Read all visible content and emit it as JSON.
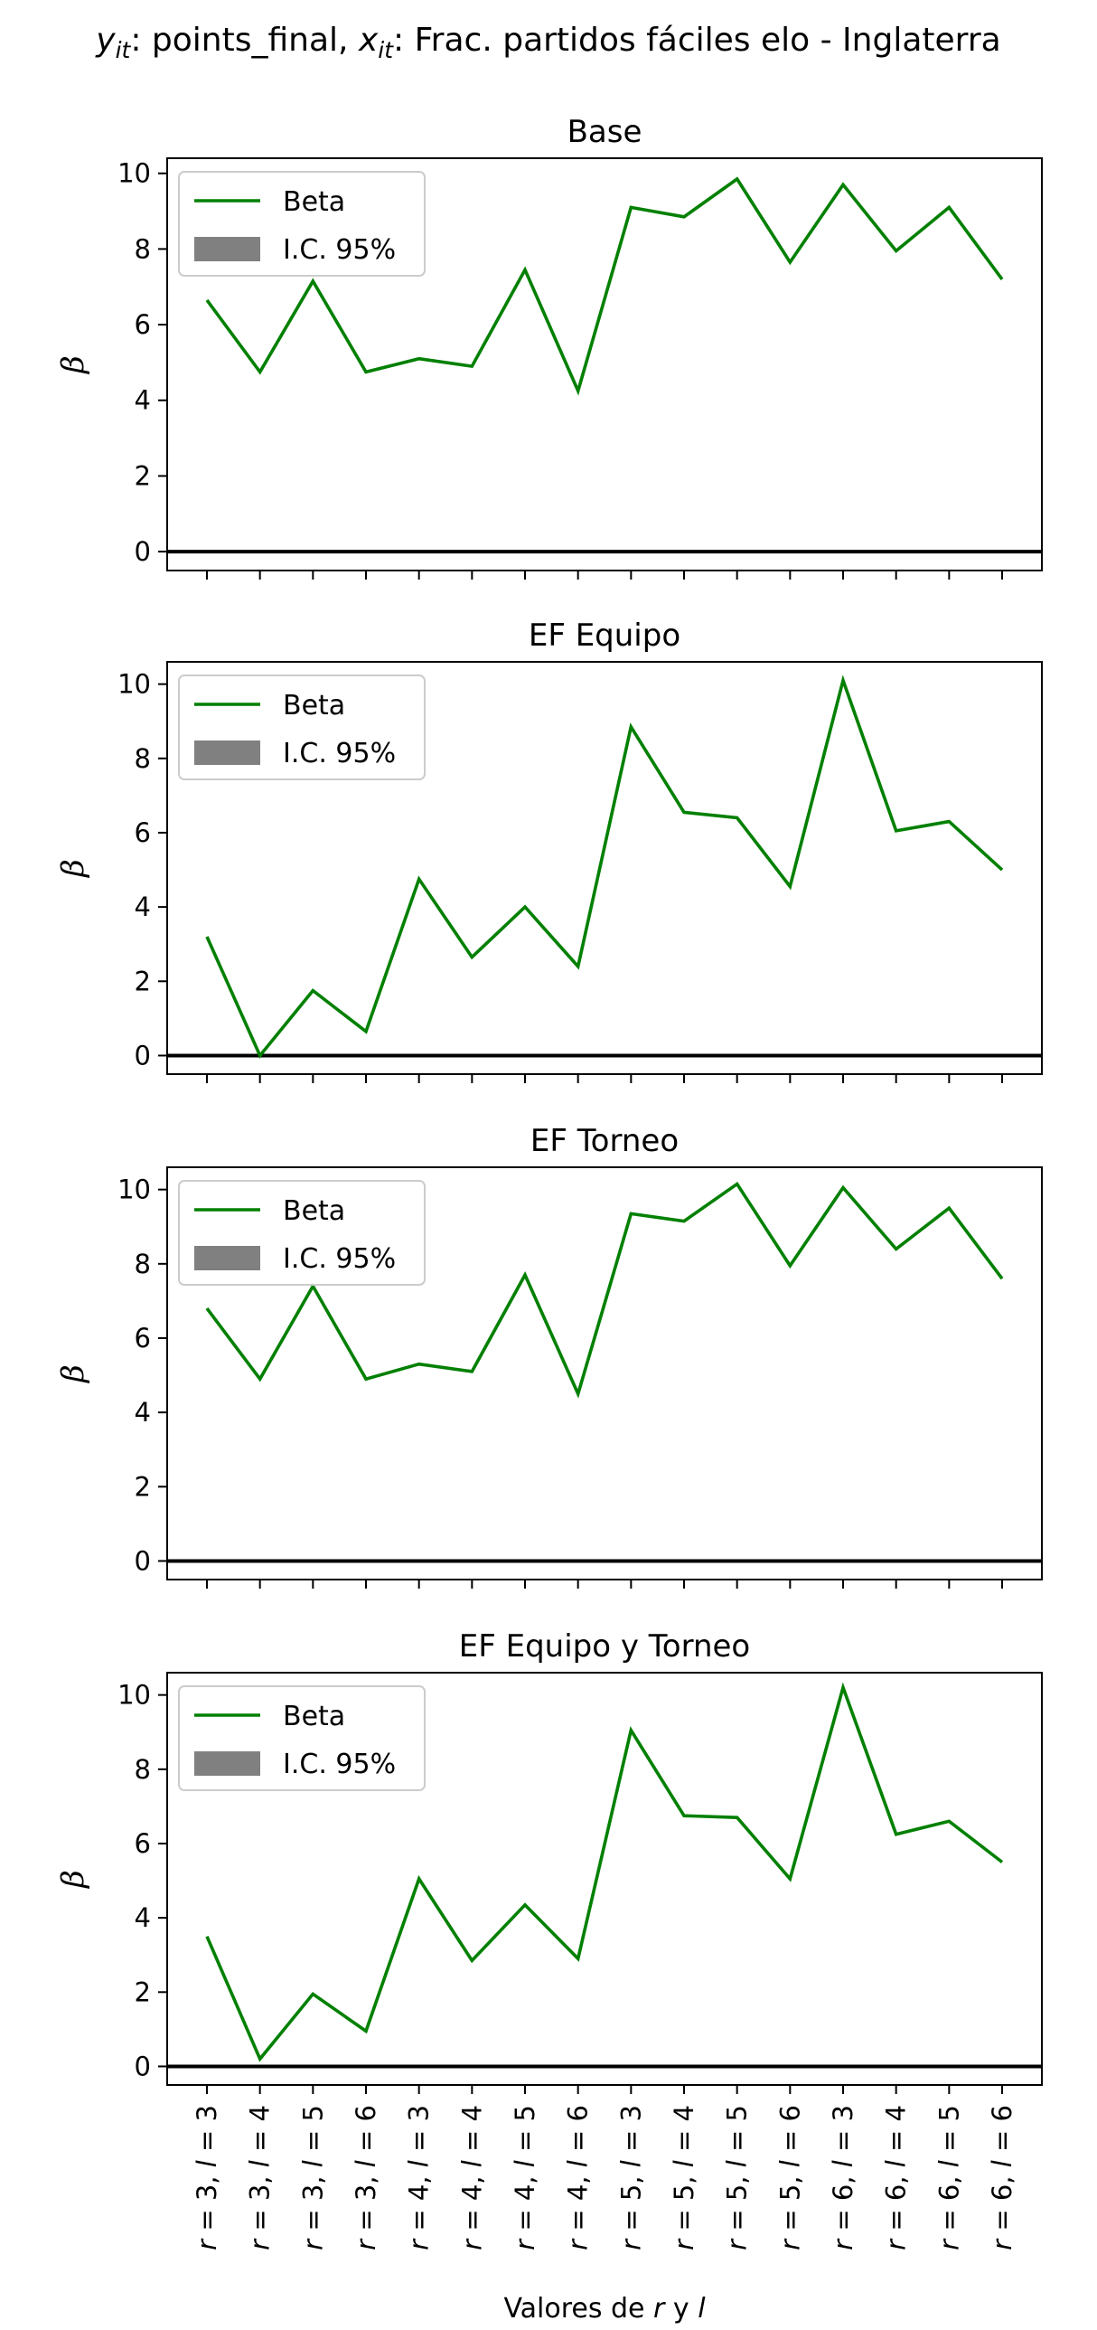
{
  "suptitle": {
    "y_sym": "y",
    "y_sub": "it",
    "y_text": ": points_final, ",
    "x_sym": "x",
    "x_sub": "it",
    "x_text": ": Frac. partidos fáciles elo - Inglaterra"
  },
  "colors": {
    "beta": "#008000",
    "ci": "#808080",
    "zero_line": "#000000",
    "axes": "#000000"
  },
  "xlabel": {
    "prefix": "Valores de ",
    "r": "r",
    "mid": " y ",
    "l": "l"
  },
  "chart_data": [
    {
      "type": "line",
      "title": "Base",
      "ylabel": "β",
      "ylim": [
        -0.5,
        10.4
      ],
      "yticks": [
        "0",
        "2",
        "4",
        "6",
        "8",
        "10"
      ],
      "legend": [
        "Beta",
        "I.C. 95%"
      ],
      "legend_position": "top-left",
      "categories": [
        "r = 3, l = 3",
        "r = 3, l = 4",
        "r = 3, l = 5",
        "r = 3, l = 6",
        "r = 4, l = 3",
        "r = 4, l = 4",
        "r = 4, l = 5",
        "r = 4, l = 6",
        "r = 5, l = 3",
        "r = 5, l = 4",
        "r = 5, l = 5",
        "r = 5, l = 6",
        "r = 6, l = 3",
        "r = 6, l = 4",
        "r = 6, l = 5",
        "r = 6, l = 6"
      ],
      "series": [
        {
          "name": "Beta",
          "values": [
            6.65,
            4.75,
            7.15,
            4.75,
            5.1,
            4.9,
            7.45,
            4.25,
            9.1,
            8.85,
            9.85,
            7.65,
            9.7,
            7.95,
            9.1,
            7.2
          ]
        }
      ]
    },
    {
      "type": "line",
      "title": "EF Equipo",
      "ylabel": "β",
      "ylim": [
        -0.5,
        10.6
      ],
      "yticks": [
        "0",
        "2",
        "4",
        "6",
        "8",
        "10"
      ],
      "legend": [
        "Beta",
        "I.C. 95%"
      ],
      "legend_position": "top-left",
      "categories": [
        "r = 3, l = 3",
        "r = 3, l = 4",
        "r = 3, l = 5",
        "r = 3, l = 6",
        "r = 4, l = 3",
        "r = 4, l = 4",
        "r = 4, l = 5",
        "r = 4, l = 6",
        "r = 5, l = 3",
        "r = 5, l = 4",
        "r = 5, l = 5",
        "r = 5, l = 6",
        "r = 6, l = 3",
        "r = 6, l = 4",
        "r = 6, l = 5",
        "r = 6, l = 6"
      ],
      "series": [
        {
          "name": "Beta",
          "values": [
            3.2,
            0.0,
            1.75,
            0.65,
            4.75,
            2.65,
            4.0,
            2.4,
            8.85,
            6.55,
            6.4,
            4.55,
            10.1,
            6.05,
            6.3,
            5.0
          ]
        }
      ]
    },
    {
      "type": "line",
      "title": "EF Torneo",
      "ylabel": "β",
      "ylim": [
        -0.5,
        10.6
      ],
      "yticks": [
        "0",
        "2",
        "4",
        "6",
        "8",
        "10"
      ],
      "legend": [
        "Beta",
        "I.C. 95%"
      ],
      "legend_position": "top-left",
      "categories": [
        "r = 3, l = 3",
        "r = 3, l = 4",
        "r = 3, l = 5",
        "r = 3, l = 6",
        "r = 4, l = 3",
        "r = 4, l = 4",
        "r = 4, l = 5",
        "r = 4, l = 6",
        "r = 5, l = 3",
        "r = 5, l = 4",
        "r = 5, l = 5",
        "r = 5, l = 6",
        "r = 6, l = 3",
        "r = 6, l = 4",
        "r = 6, l = 5",
        "r = 6, l = 6"
      ],
      "series": [
        {
          "name": "Beta",
          "values": [
            6.8,
            4.9,
            7.4,
            4.9,
            5.3,
            5.1,
            7.7,
            4.5,
            9.35,
            9.15,
            10.15,
            7.95,
            10.05,
            8.4,
            9.5,
            7.6
          ]
        }
      ]
    },
    {
      "type": "line",
      "title": "EF Equipo y Torneo",
      "ylabel": "β",
      "ylim": [
        -0.5,
        10.6
      ],
      "yticks": [
        "0",
        "2",
        "4",
        "6",
        "8",
        "10"
      ],
      "legend": [
        "Beta",
        "I.C. 95%"
      ],
      "legend_position": "top-left",
      "categories": [
        "r = 3, l = 3",
        "r = 3, l = 4",
        "r = 3, l = 5",
        "r = 3, l = 6",
        "r = 4, l = 3",
        "r = 4, l = 4",
        "r = 4, l = 5",
        "r = 4, l = 6",
        "r = 5, l = 3",
        "r = 5, l = 4",
        "r = 5, l = 5",
        "r = 5, l = 6",
        "r = 6, l = 3",
        "r = 6, l = 4",
        "r = 6, l = 5",
        "r = 6, l = 6"
      ],
      "series": [
        {
          "name": "Beta",
          "values": [
            3.5,
            0.2,
            1.95,
            0.95,
            5.05,
            2.85,
            4.35,
            2.9,
            9.05,
            6.75,
            6.7,
            5.05,
            10.2,
            6.25,
            6.6,
            5.5
          ]
        }
      ]
    }
  ]
}
